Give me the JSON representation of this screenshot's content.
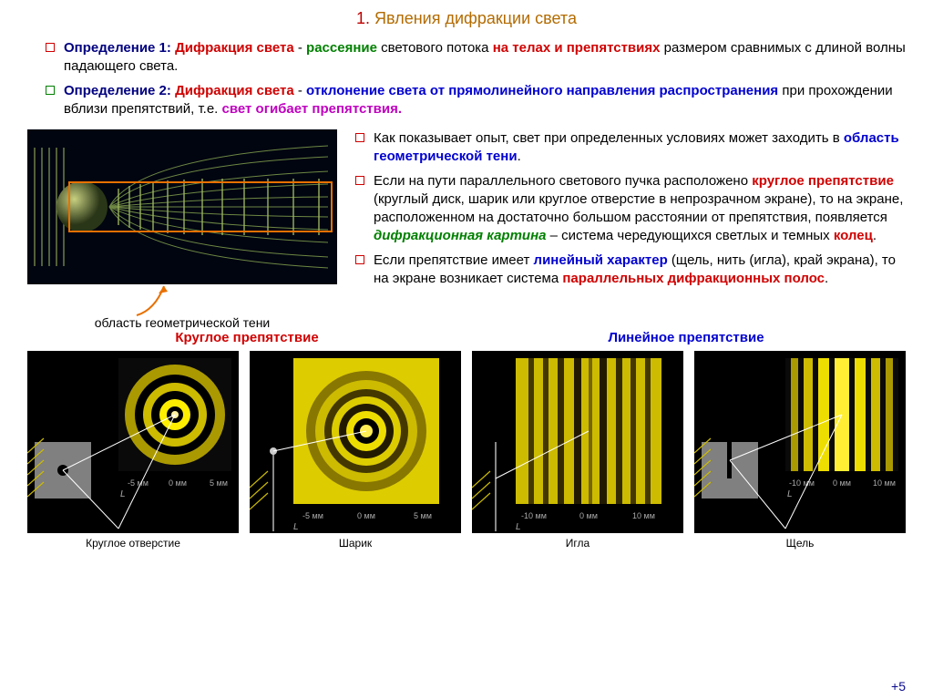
{
  "title": {
    "num": "1.",
    "text": "Явления дифракции света"
  },
  "colors": {
    "title_num": "#c00000",
    "title_text": "#b36b00",
    "red": "#d00000",
    "green": "#008000",
    "blue": "#0000d0",
    "navy": "#000080",
    "magenta": "#c000c0",
    "orange": "#e87000",
    "black": "#000000"
  },
  "def1": {
    "label": "Определение 1: ",
    "t1": "Дифракция света",
    "t2": " - ",
    "t3": "рассеяние",
    "t4": " светового потока ",
    "t5": "на телах и препятствиях",
    "t6": " размером сравнимых с длиной волны падающего света."
  },
  "def2": {
    "label": "Определение 2: ",
    "t1": "Дифракция света",
    "t2": " - ",
    "t3": "отклонение света от прямолинейного направления распространения",
    "t4": " при прохождении вблизи препятствий, т.е. ",
    "t5": "свет огибает препятствия."
  },
  "right_bullets": [
    {
      "parts": [
        {
          "c": "black",
          "t": "Как показывает опыт, свет при определенных условиях может заходить в "
        },
        {
          "c": "blue",
          "b": 1,
          "t": "область геометрической тени"
        },
        {
          "c": "black",
          "t": "."
        }
      ]
    },
    {
      "parts": [
        {
          "c": "black",
          "t": "Если на пути параллельного светового пучка расположено "
        },
        {
          "c": "red",
          "b": 1,
          "t": "круглое препятствие"
        },
        {
          "c": "black",
          "t": " (круглый диск, шарик или круглое отверстие в непрозрачном экране), то на экране, расположенном на достаточно большом расстоянии от препятствия, появляется "
        },
        {
          "c": "green",
          "b": 1,
          "i": 1,
          "t": "дифракционная картина"
        },
        {
          "c": "black",
          "t": " – система чередующихся светлых и темных "
        },
        {
          "c": "red",
          "b": 1,
          "t": "колец"
        },
        {
          "c": "black",
          "t": "."
        }
      ]
    },
    {
      "parts": [
        {
          "c": "black",
          "t": "Если препятствие имеет "
        },
        {
          "c": "blue",
          "b": 1,
          "t": "линейный характер"
        },
        {
          "c": "black",
          "t": " (щель, нить (игла), край экрана), то на экране возникает система "
        },
        {
          "c": "red",
          "b": 1,
          "t": "параллельных дифракционных полос"
        },
        {
          "c": "black",
          "t": "."
        }
      ]
    }
  ],
  "shadow_caption": "область геометрической тени",
  "bottom_labels": {
    "left": "Круглое препятствие",
    "right": "Линейное препятствие"
  },
  "cells": [
    {
      "label": "Круглое отверстие",
      "axis_l": "-5 мм",
      "axis_c": "0 мм",
      "axis_r": "5 мм"
    },
    {
      "label": "Шарик",
      "axis_l": "-5 мм",
      "axis_c": "0 мм",
      "axis_r": "5 мм"
    },
    {
      "label": "Игла",
      "axis_l": "-10 мм",
      "axis_c": "0 мм",
      "axis_r": "10 мм"
    },
    {
      "label": "Щель",
      "axis_l": "-10 мм",
      "axis_c": "0 мм",
      "axis_r": "10 мм"
    }
  ],
  "page_num": "+5",
  "diff_diagram": {
    "bg": "#000510",
    "wave_color": "#7fa050",
    "sphere_color": "#6a7a40",
    "box_color": "#e87000"
  },
  "patterns": {
    "ring_colors": [
      "#000",
      "#aa9900",
      "#000",
      "#ccbb00",
      "#000",
      "#ffee00"
    ],
    "stripe_color": "#ccbb00",
    "schematic_gray": "#808080",
    "schematic_yellow": "#ccbb00"
  }
}
